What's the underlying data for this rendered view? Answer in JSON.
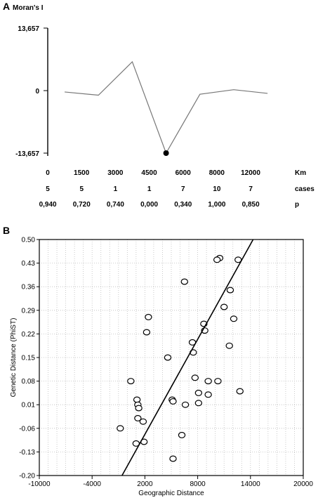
{
  "chart_data": [
    {
      "panel_label": "A",
      "type": "line",
      "ylabel": "Moran's I",
      "yticks": [
        "13,657",
        "0",
        "-13,657"
      ],
      "ylim": [
        -13.657,
        13.657
      ],
      "x_tick_labels": [
        "0",
        "1500",
        "3000",
        "4500",
        "6000",
        "8000",
        "12000"
      ],
      "x_unit": "Km",
      "rows": [
        {
          "label": "cases",
          "values": [
            "5",
            "5",
            "1",
            "1",
            "7",
            "10",
            "7"
          ]
        },
        {
          "label": "p",
          "values": [
            "0,940",
            "0,720",
            "0,740",
            "0,000",
            "0,340",
            "1,000",
            "0,850"
          ]
        }
      ],
      "series": [
        {
          "points": [
            {
              "x": 0.75,
              "y": -0.3
            },
            {
              "x": 2.25,
              "y": -1.0
            },
            {
              "x": 3.75,
              "y": 6.3
            },
            {
              "x": 5.25,
              "y": -13.657,
              "significant": true
            },
            {
              "x": 6.75,
              "y": -0.8
            },
            {
              "x": 8.25,
              "y": 0.2
            },
            {
              "x": 9.75,
              "y": -0.6
            }
          ]
        }
      ],
      "xlim": [
        0,
        10.4
      ]
    },
    {
      "panel_label": "B",
      "type": "scatter",
      "xlabel": "Geographic Distance",
      "ylabel": "Genetic Distance (PhiST)",
      "xlim": [
        -10000,
        20000
      ],
      "ylim": [
        -0.2,
        0.5
      ],
      "xticks": [
        "-10000",
        "-4000",
        "2000",
        "8000",
        "14000",
        "20000"
      ],
      "yticks": [
        "0.50",
        "0.43",
        "0.36",
        "0.29",
        "0.22",
        "0.15",
        "0.08",
        "0.01",
        "-0.06",
        "-0.13",
        "-0.20"
      ],
      "grid": true,
      "regression_line": {
        "x1": -600,
        "y1": -0.2,
        "x2": 14300,
        "y2": 0.5
      },
      "points": [
        {
          "x": 12600,
          "y": 0.44
        },
        {
          "x": 10500,
          "y": 0.445
        },
        {
          "x": 10200,
          "y": 0.44
        },
        {
          "x": 6500,
          "y": 0.375
        },
        {
          "x": 11700,
          "y": 0.35
        },
        {
          "x": 11000,
          "y": 0.3
        },
        {
          "x": 2400,
          "y": 0.27
        },
        {
          "x": 12100,
          "y": 0.265
        },
        {
          "x": 8700,
          "y": 0.25
        },
        {
          "x": 8800,
          "y": 0.23
        },
        {
          "x": 2200,
          "y": 0.225
        },
        {
          "x": 7400,
          "y": 0.195
        },
        {
          "x": 11600,
          "y": 0.185
        },
        {
          "x": 7500,
          "y": 0.165
        },
        {
          "x": 4600,
          "y": 0.15
        },
        {
          "x": 7700,
          "y": 0.09
        },
        {
          "x": 400,
          "y": 0.08
        },
        {
          "x": 9200,
          "y": 0.08
        },
        {
          "x": 10300,
          "y": 0.08
        },
        {
          "x": 1100,
          "y": 0.025
        },
        {
          "x": 5100,
          "y": 0.025
        },
        {
          "x": 5200,
          "y": 0.02
        },
        {
          "x": 1200,
          "y": 0.01
        },
        {
          "x": 6600,
          "y": 0.01
        },
        {
          "x": 8100,
          "y": 0.015
        },
        {
          "x": 1300,
          "y": 0.0
        },
        {
          "x": 12800,
          "y": 0.05
        },
        {
          "x": 8100,
          "y": 0.045
        },
        {
          "x": 9200,
          "y": 0.04
        },
        {
          "x": 1200,
          "y": -0.03
        },
        {
          "x": -800,
          "y": -0.06
        },
        {
          "x": 1800,
          "y": -0.04
        },
        {
          "x": 6200,
          "y": -0.08
        },
        {
          "x": 1900,
          "y": -0.1
        },
        {
          "x": 1000,
          "y": -0.105
        },
        {
          "x": 5200,
          "y": -0.15
        }
      ]
    }
  ]
}
